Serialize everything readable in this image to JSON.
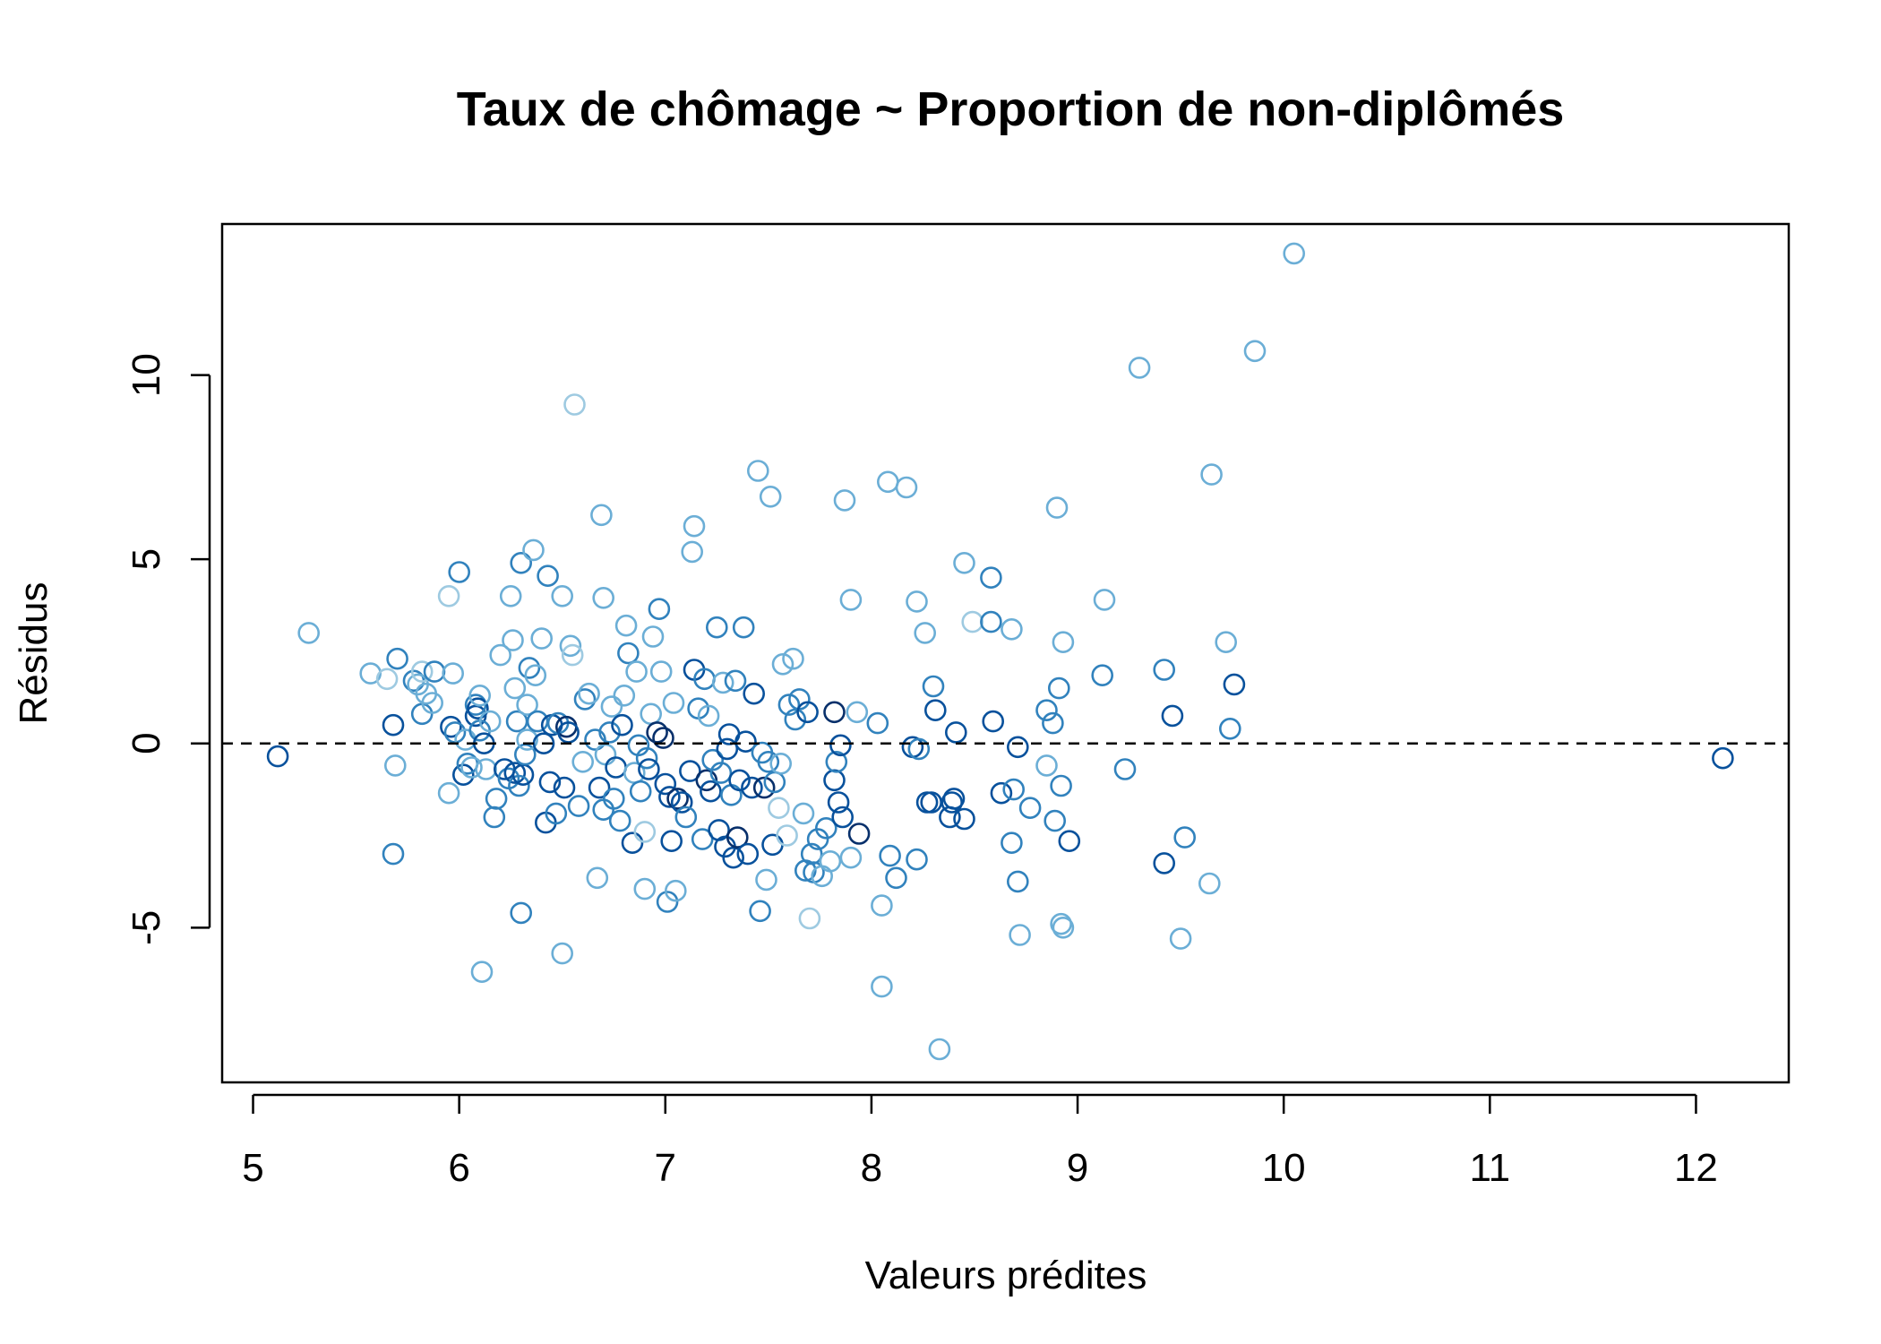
{
  "chart_data": {
    "type": "scatter",
    "title": "Taux de chômage ~ Proportion de non-diplômés",
    "xlabel": "Valeurs prédites",
    "ylabel": "Résidus",
    "xlim": [
      4.85,
      12.45
    ],
    "ylim": [
      -9.2,
      14.1
    ],
    "xticks": [
      5,
      6,
      7,
      8,
      9,
      10,
      11,
      12
    ],
    "yticks": [
      -5,
      0,
      5,
      10
    ],
    "reference_line": {
      "y": 0,
      "style": "dashed"
    },
    "grid": false,
    "legend": "none",
    "colors": [
      "#9ecae1",
      "#6baed6",
      "#3182bd",
      "#08519c",
      "#08306b"
    ],
    "points": [
      {
        "x": 5.12,
        "y": -0.35,
        "c": 3
      },
      {
        "x": 5.27,
        "y": 3.0,
        "c": 1
      },
      {
        "x": 5.57,
        "y": 1.9,
        "c": 1
      },
      {
        "x": 5.65,
        "y": 1.75,
        "c": 0
      },
      {
        "x": 5.68,
        "y": 0.5,
        "c": 3
      },
      {
        "x": 5.68,
        "y": -3.0,
        "c": 2
      },
      {
        "x": 5.69,
        "y": -0.6,
        "c": 1
      },
      {
        "x": 5.7,
        "y": 2.3,
        "c": 2
      },
      {
        "x": 5.78,
        "y": 1.7,
        "c": 2
      },
      {
        "x": 5.8,
        "y": 1.6,
        "c": 1
      },
      {
        "x": 5.82,
        "y": 1.95,
        "c": 0
      },
      {
        "x": 5.82,
        "y": 0.8,
        "c": 2
      },
      {
        "x": 5.84,
        "y": 1.35,
        "c": 1
      },
      {
        "x": 5.87,
        "y": 1.1,
        "c": 1
      },
      {
        "x": 5.88,
        "y": 1.95,
        "c": 2
      },
      {
        "x": 5.95,
        "y": 4.0,
        "c": 0
      },
      {
        "x": 5.95,
        "y": -1.35,
        "c": 1
      },
      {
        "x": 5.96,
        "y": 0.45,
        "c": 3
      },
      {
        "x": 5.97,
        "y": 1.9,
        "c": 1
      },
      {
        "x": 5.98,
        "y": 0.3,
        "c": 2
      },
      {
        "x": 6.0,
        "y": 4.65,
        "c": 2
      },
      {
        "x": 6.02,
        "y": -0.85,
        "c": 3
      },
      {
        "x": 6.03,
        "y": 0.1,
        "c": 1
      },
      {
        "x": 6.04,
        "y": -0.55,
        "c": 2
      },
      {
        "x": 6.06,
        "y": -0.65,
        "c": 1
      },
      {
        "x": 6.08,
        "y": 0.75,
        "c": 3
      },
      {
        "x": 6.08,
        "y": 1.05,
        "c": 2
      },
      {
        "x": 6.09,
        "y": 0.95,
        "c": 3
      },
      {
        "x": 6.1,
        "y": 1.3,
        "c": 1
      },
      {
        "x": 6.1,
        "y": 0.35,
        "c": 2
      },
      {
        "x": 6.11,
        "y": -6.2,
        "c": 1
      },
      {
        "x": 6.12,
        "y": 0.0,
        "c": 3
      },
      {
        "x": 6.13,
        "y": -0.7,
        "c": 1
      },
      {
        "x": 6.15,
        "y": 0.6,
        "c": 1
      },
      {
        "x": 6.17,
        "y": -2.0,
        "c": 2
      },
      {
        "x": 6.18,
        "y": -1.5,
        "c": 2
      },
      {
        "x": 6.2,
        "y": 2.4,
        "c": 1
      },
      {
        "x": 6.22,
        "y": -0.7,
        "c": 3
      },
      {
        "x": 6.24,
        "y": -0.95,
        "c": 2
      },
      {
        "x": 6.25,
        "y": 4.0,
        "c": 1
      },
      {
        "x": 6.26,
        "y": 2.8,
        "c": 1
      },
      {
        "x": 6.27,
        "y": 1.5,
        "c": 1
      },
      {
        "x": 6.27,
        "y": -0.8,
        "c": 3
      },
      {
        "x": 6.28,
        "y": 0.6,
        "c": 2
      },
      {
        "x": 6.29,
        "y": -1.15,
        "c": 2
      },
      {
        "x": 6.3,
        "y": 4.9,
        "c": 2
      },
      {
        "x": 6.3,
        "y": -4.6,
        "c": 2
      },
      {
        "x": 6.31,
        "y": -0.85,
        "c": 3
      },
      {
        "x": 6.32,
        "y": -0.3,
        "c": 2
      },
      {
        "x": 6.33,
        "y": 0.1,
        "c": 1
      },
      {
        "x": 6.33,
        "y": 1.05,
        "c": 1
      },
      {
        "x": 6.34,
        "y": 2.05,
        "c": 2
      },
      {
        "x": 6.36,
        "y": 5.25,
        "c": 1
      },
      {
        "x": 6.37,
        "y": 1.85,
        "c": 1
      },
      {
        "x": 6.38,
        "y": 0.6,
        "c": 2
      },
      {
        "x": 6.4,
        "y": 2.85,
        "c": 1
      },
      {
        "x": 6.41,
        "y": 0.0,
        "c": 3
      },
      {
        "x": 6.42,
        "y": -2.15,
        "c": 3
      },
      {
        "x": 6.43,
        "y": 4.55,
        "c": 2
      },
      {
        "x": 6.44,
        "y": -1.05,
        "c": 3
      },
      {
        "x": 6.45,
        "y": 0.5,
        "c": 3
      },
      {
        "x": 6.47,
        "y": -1.9,
        "c": 2
      },
      {
        "x": 6.48,
        "y": 0.55,
        "c": 2
      },
      {
        "x": 6.5,
        "y": 4.0,
        "c": 1
      },
      {
        "x": 6.5,
        "y": -5.7,
        "c": 1
      },
      {
        "x": 6.51,
        "y": -1.2,
        "c": 3
      },
      {
        "x": 6.52,
        "y": 0.45,
        "c": 4
      },
      {
        "x": 6.53,
        "y": 0.3,
        "c": 3
      },
      {
        "x": 6.54,
        "y": 2.65,
        "c": 1
      },
      {
        "x": 6.55,
        "y": 2.4,
        "c": 0
      },
      {
        "x": 6.56,
        "y": 9.2,
        "c": 0
      },
      {
        "x": 6.58,
        "y": -1.7,
        "c": 2
      },
      {
        "x": 6.6,
        "y": -0.5,
        "c": 1
      },
      {
        "x": 6.61,
        "y": 1.2,
        "c": 2
      },
      {
        "x": 6.63,
        "y": 1.35,
        "c": 1
      },
      {
        "x": 6.66,
        "y": 0.1,
        "c": 2
      },
      {
        "x": 6.67,
        "y": -3.65,
        "c": 1
      },
      {
        "x": 6.68,
        "y": -1.2,
        "c": 3
      },
      {
        "x": 6.69,
        "y": 6.2,
        "c": 1
      },
      {
        "x": 6.7,
        "y": 3.95,
        "c": 1
      },
      {
        "x": 6.7,
        "y": -1.8,
        "c": 2
      },
      {
        "x": 6.71,
        "y": -0.3,
        "c": 1
      },
      {
        "x": 6.73,
        "y": 0.3,
        "c": 2
      },
      {
        "x": 6.74,
        "y": 1.0,
        "c": 1
      },
      {
        "x": 6.75,
        "y": -1.5,
        "c": 2
      },
      {
        "x": 6.76,
        "y": -0.65,
        "c": 3
      },
      {
        "x": 6.78,
        "y": -2.1,
        "c": 2
      },
      {
        "x": 6.79,
        "y": 0.5,
        "c": 3
      },
      {
        "x": 6.8,
        "y": 1.3,
        "c": 1
      },
      {
        "x": 6.81,
        "y": 3.2,
        "c": 1
      },
      {
        "x": 6.82,
        "y": 2.45,
        "c": 2
      },
      {
        "x": 6.84,
        "y": -2.7,
        "c": 3
      },
      {
        "x": 6.85,
        "y": -0.8,
        "c": 1
      },
      {
        "x": 6.86,
        "y": 1.95,
        "c": 1
      },
      {
        "x": 6.87,
        "y": -0.05,
        "c": 2
      },
      {
        "x": 6.88,
        "y": -1.3,
        "c": 2
      },
      {
        "x": 6.9,
        "y": -2.4,
        "c": 0
      },
      {
        "x": 6.9,
        "y": -3.95,
        "c": 1
      },
      {
        "x": 6.91,
        "y": -0.4,
        "c": 2
      },
      {
        "x": 6.92,
        "y": -0.7,
        "c": 3
      },
      {
        "x": 6.93,
        "y": 0.8,
        "c": 1
      },
      {
        "x": 6.94,
        "y": 2.9,
        "c": 1
      },
      {
        "x": 6.96,
        "y": 0.3,
        "c": 4
      },
      {
        "x": 6.97,
        "y": 3.65,
        "c": 2
      },
      {
        "x": 6.98,
        "y": 1.95,
        "c": 1
      },
      {
        "x": 6.99,
        "y": 0.15,
        "c": 4
      },
      {
        "x": 7.0,
        "y": -1.1,
        "c": 3
      },
      {
        "x": 7.01,
        "y": -4.3,
        "c": 2
      },
      {
        "x": 7.02,
        "y": -1.45,
        "c": 3
      },
      {
        "x": 7.03,
        "y": -2.65,
        "c": 3
      },
      {
        "x": 7.04,
        "y": 1.1,
        "c": 1
      },
      {
        "x": 7.05,
        "y": -4.0,
        "c": 1
      },
      {
        "x": 7.06,
        "y": -1.5,
        "c": 4
      },
      {
        "x": 7.08,
        "y": -1.6,
        "c": 3
      },
      {
        "x": 7.1,
        "y": -2.0,
        "c": 2
      },
      {
        "x": 7.12,
        "y": -0.75,
        "c": 3
      },
      {
        "x": 7.13,
        "y": 5.2,
        "c": 1
      },
      {
        "x": 7.14,
        "y": 5.9,
        "c": 1
      },
      {
        "x": 7.14,
        "y": 2.0,
        "c": 3
      },
      {
        "x": 7.16,
        "y": 0.95,
        "c": 2
      },
      {
        "x": 7.18,
        "y": -2.6,
        "c": 2
      },
      {
        "x": 7.19,
        "y": 1.75,
        "c": 2
      },
      {
        "x": 7.2,
        "y": -1.0,
        "c": 4
      },
      {
        "x": 7.21,
        "y": 0.75,
        "c": 1
      },
      {
        "x": 7.22,
        "y": -1.3,
        "c": 3
      },
      {
        "x": 7.23,
        "y": -0.45,
        "c": 2
      },
      {
        "x": 7.25,
        "y": 3.15,
        "c": 2
      },
      {
        "x": 7.26,
        "y": -2.35,
        "c": 3
      },
      {
        "x": 7.27,
        "y": -0.8,
        "c": 2
      },
      {
        "x": 7.28,
        "y": 1.65,
        "c": 1
      },
      {
        "x": 7.29,
        "y": -2.8,
        "c": 3
      },
      {
        "x": 7.3,
        "y": -0.15,
        "c": 3
      },
      {
        "x": 7.31,
        "y": 0.25,
        "c": 3
      },
      {
        "x": 7.32,
        "y": -1.4,
        "c": 2
      },
      {
        "x": 7.33,
        "y": -3.1,
        "c": 3
      },
      {
        "x": 7.34,
        "y": 1.7,
        "c": 2
      },
      {
        "x": 7.35,
        "y": -2.55,
        "c": 4
      },
      {
        "x": 7.36,
        "y": -1.0,
        "c": 3
      },
      {
        "x": 7.38,
        "y": 3.15,
        "c": 2
      },
      {
        "x": 7.39,
        "y": 0.05,
        "c": 3
      },
      {
        "x": 7.4,
        "y": -3.0,
        "c": 3
      },
      {
        "x": 7.42,
        "y": -1.2,
        "c": 3
      },
      {
        "x": 7.43,
        "y": 1.35,
        "c": 3
      },
      {
        "x": 7.45,
        "y": 7.4,
        "c": 1
      },
      {
        "x": 7.46,
        "y": -4.55,
        "c": 2
      },
      {
        "x": 7.47,
        "y": -0.25,
        "c": 2
      },
      {
        "x": 7.48,
        "y": -1.2,
        "c": 4
      },
      {
        "x": 7.49,
        "y": -3.7,
        "c": 1
      },
      {
        "x": 7.5,
        "y": -0.5,
        "c": 2
      },
      {
        "x": 7.51,
        "y": 6.7,
        "c": 1
      },
      {
        "x": 7.52,
        "y": -2.75,
        "c": 3
      },
      {
        "x": 7.53,
        "y": -1.05,
        "c": 2
      },
      {
        "x": 7.55,
        "y": -1.75,
        "c": 0
      },
      {
        "x": 7.56,
        "y": -0.55,
        "c": 1
      },
      {
        "x": 7.57,
        "y": 2.15,
        "c": 1
      },
      {
        "x": 7.59,
        "y": -2.5,
        "c": 0
      },
      {
        "x": 7.6,
        "y": 1.05,
        "c": 2
      },
      {
        "x": 7.62,
        "y": 2.3,
        "c": 1
      },
      {
        "x": 7.63,
        "y": 0.65,
        "c": 2
      },
      {
        "x": 7.65,
        "y": 1.2,
        "c": 2
      },
      {
        "x": 7.67,
        "y": -1.9,
        "c": 1
      },
      {
        "x": 7.68,
        "y": -3.45,
        "c": 2
      },
      {
        "x": 7.69,
        "y": 0.85,
        "c": 3
      },
      {
        "x": 7.7,
        "y": -4.75,
        "c": 0
      },
      {
        "x": 7.71,
        "y": -3.0,
        "c": 2
      },
      {
        "x": 7.72,
        "y": -3.5,
        "c": 2
      },
      {
        "x": 7.74,
        "y": -2.6,
        "c": 2
      },
      {
        "x": 7.76,
        "y": -3.6,
        "c": 1
      },
      {
        "x": 7.78,
        "y": -2.3,
        "c": 2
      },
      {
        "x": 7.8,
        "y": -3.2,
        "c": 1
      },
      {
        "x": 7.82,
        "y": 0.85,
        "c": 4
      },
      {
        "x": 7.82,
        "y": -1.0,
        "c": 3
      },
      {
        "x": 7.83,
        "y": -0.5,
        "c": 2
      },
      {
        "x": 7.84,
        "y": -1.6,
        "c": 3
      },
      {
        "x": 7.85,
        "y": -0.05,
        "c": 3
      },
      {
        "x": 7.86,
        "y": -2.0,
        "c": 3
      },
      {
        "x": 7.87,
        "y": 6.6,
        "c": 1
      },
      {
        "x": 7.9,
        "y": 3.9,
        "c": 1
      },
      {
        "x": 7.9,
        "y": -3.1,
        "c": 1
      },
      {
        "x": 7.93,
        "y": 0.85,
        "c": 1
      },
      {
        "x": 7.94,
        "y": -2.45,
        "c": 4
      },
      {
        "x": 8.03,
        "y": 0.55,
        "c": 2
      },
      {
        "x": 8.05,
        "y": -4.4,
        "c": 1
      },
      {
        "x": 8.05,
        "y": -6.6,
        "c": 1
      },
      {
        "x": 8.08,
        "y": 7.1,
        "c": 1
      },
      {
        "x": 8.09,
        "y": -3.05,
        "c": 2
      },
      {
        "x": 8.12,
        "y": -3.65,
        "c": 2
      },
      {
        "x": 8.17,
        "y": 6.95,
        "c": 1
      },
      {
        "x": 8.2,
        "y": -0.1,
        "c": 3
      },
      {
        "x": 8.22,
        "y": 3.85,
        "c": 1
      },
      {
        "x": 8.22,
        "y": -3.15,
        "c": 2
      },
      {
        "x": 8.23,
        "y": -0.15,
        "c": 2
      },
      {
        "x": 8.26,
        "y": 3.0,
        "c": 1
      },
      {
        "x": 8.27,
        "y": -1.6,
        "c": 3
      },
      {
        "x": 8.29,
        "y": -1.6,
        "c": 3
      },
      {
        "x": 8.3,
        "y": 1.55,
        "c": 2
      },
      {
        "x": 8.31,
        "y": 0.9,
        "c": 3
      },
      {
        "x": 8.33,
        "y": -8.3,
        "c": 1
      },
      {
        "x": 8.38,
        "y": -2.0,
        "c": 3
      },
      {
        "x": 8.39,
        "y": -1.6,
        "c": 3
      },
      {
        "x": 8.4,
        "y": -1.5,
        "c": 3
      },
      {
        "x": 8.41,
        "y": 0.3,
        "c": 3
      },
      {
        "x": 8.45,
        "y": -2.05,
        "c": 3
      },
      {
        "x": 8.45,
        "y": 4.9,
        "c": 1
      },
      {
        "x": 8.49,
        "y": 3.3,
        "c": 0
      },
      {
        "x": 8.58,
        "y": 4.5,
        "c": 2
      },
      {
        "x": 8.58,
        "y": 3.3,
        "c": 2
      },
      {
        "x": 8.59,
        "y": 0.6,
        "c": 3
      },
      {
        "x": 8.63,
        "y": -1.35,
        "c": 3
      },
      {
        "x": 8.68,
        "y": 3.1,
        "c": 1
      },
      {
        "x": 8.68,
        "y": -2.7,
        "c": 2
      },
      {
        "x": 8.69,
        "y": -1.25,
        "c": 2
      },
      {
        "x": 8.71,
        "y": -3.75,
        "c": 2
      },
      {
        "x": 8.71,
        "y": -0.1,
        "c": 3
      },
      {
        "x": 8.72,
        "y": -5.2,
        "c": 1
      },
      {
        "x": 8.77,
        "y": -1.75,
        "c": 2
      },
      {
        "x": 8.85,
        "y": 0.9,
        "c": 2
      },
      {
        "x": 8.85,
        "y": -0.6,
        "c": 1
      },
      {
        "x": 8.88,
        "y": 0.55,
        "c": 2
      },
      {
        "x": 8.89,
        "y": -2.1,
        "c": 2
      },
      {
        "x": 8.9,
        "y": 6.4,
        "c": 1
      },
      {
        "x": 8.91,
        "y": 1.5,
        "c": 2
      },
      {
        "x": 8.92,
        "y": -1.15,
        "c": 2
      },
      {
        "x": 8.92,
        "y": -4.9,
        "c": 1
      },
      {
        "x": 8.93,
        "y": 2.75,
        "c": 1
      },
      {
        "x": 8.93,
        "y": -5.0,
        "c": 1
      },
      {
        "x": 8.96,
        "y": -2.65,
        "c": 3
      },
      {
        "x": 9.12,
        "y": 1.85,
        "c": 2
      },
      {
        "x": 9.13,
        "y": 3.9,
        "c": 1
      },
      {
        "x": 9.23,
        "y": -0.7,
        "c": 2
      },
      {
        "x": 9.3,
        "y": 10.2,
        "c": 1
      },
      {
        "x": 9.42,
        "y": 2.0,
        "c": 2
      },
      {
        "x": 9.42,
        "y": -3.25,
        "c": 3
      },
      {
        "x": 9.46,
        "y": 0.75,
        "c": 3
      },
      {
        "x": 9.5,
        "y": -5.3,
        "c": 1
      },
      {
        "x": 9.52,
        "y": -2.55,
        "c": 2
      },
      {
        "x": 9.64,
        "y": -3.8,
        "c": 1
      },
      {
        "x": 9.65,
        "y": 7.3,
        "c": 1
      },
      {
        "x": 9.72,
        "y": 2.75,
        "c": 1
      },
      {
        "x": 9.74,
        "y": 0.4,
        "c": 2
      },
      {
        "x": 9.76,
        "y": 1.6,
        "c": 3
      },
      {
        "x": 9.86,
        "y": 10.65,
        "c": 1
      },
      {
        "x": 10.05,
        "y": 13.3,
        "c": 1
      },
      {
        "x": 12.13,
        "y": -0.4,
        "c": 3
      }
    ]
  }
}
